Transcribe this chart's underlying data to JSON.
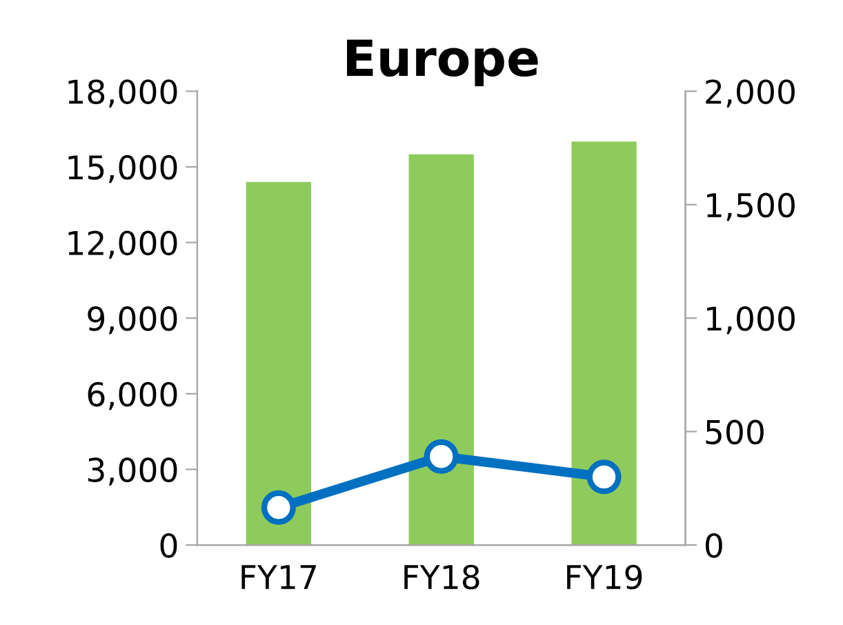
{
  "chart_data": {
    "type": "bar",
    "title": "Europe",
    "categories": [
      "FY17",
      "FY18",
      "FY19"
    ],
    "series": [
      {
        "color": "#8fcb5c",
        "values": [
          14400,
          15500,
          16000
        ]
      },
      {
        "type": "line",
        "axis": "y2",
        "color": "#0070c0",
        "values": [
          165,
          390,
          300
        ]
      }
    ],
    "ylim": [
      0,
      18000
    ],
    "yticks": [
      {
        "value": 0,
        "label": "0"
      },
      {
        "value": 3000,
        "label": "3,000"
      },
      {
        "value": 6000,
        "label": "6,000"
      },
      {
        "value": 9000,
        "label": "9,000"
      },
      {
        "value": 12000,
        "label": "12,000"
      },
      {
        "value": 15000,
        "label": "15,000"
      },
      {
        "value": 18000,
        "label": "18,000"
      }
    ],
    "y2lim": [
      0,
      2000
    ],
    "y2ticks": [
      {
        "value": 0,
        "label": "0"
      },
      {
        "value": 500,
        "label": "500"
      },
      {
        "value": 1000,
        "label": "1,000"
      },
      {
        "value": 1500,
        "label": "1,500"
      },
      {
        "value": 2000,
        "label": "2,000"
      }
    ],
    "marker": "circle",
    "line_style": "solid",
    "grid": false,
    "legend": false
  }
}
